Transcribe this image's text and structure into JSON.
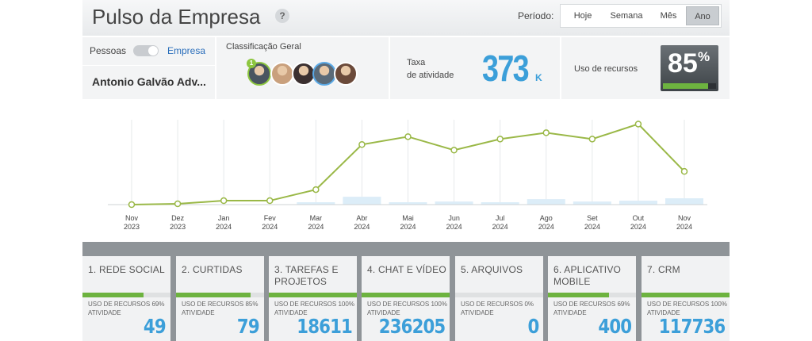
{
  "header": {
    "title": "Pulso da Empresa",
    "help_icon": "?",
    "period_label": "Período:",
    "periods": [
      "Hoje",
      "Semana",
      "Mês",
      "Ano"
    ],
    "active_period_index": 3
  },
  "filters": {
    "left_option": "Pessoas",
    "right_option": "Empresa",
    "company": "Antonio Galvão Adv..."
  },
  "ranking": {
    "title": "Classificação Geral",
    "badge": "1",
    "avatar_colors": [
      "#4a5560",
      "#c9a07d",
      "#3b3030",
      "#5a6a78",
      "#6b4a3a"
    ]
  },
  "activity": {
    "label_lines": [
      "Taxa",
      "de atividade"
    ],
    "value": "373",
    "unit": "K"
  },
  "resources": {
    "label": "Uso de recursos",
    "usage": {
      "value": 85,
      "label": "85"
    },
    "unit": "%"
  },
  "chart": {
    "type": "line",
    "x_labels": [
      [
        "Nov",
        "2023"
      ],
      [
        "Dez",
        "2023"
      ],
      [
        "Jan",
        "2024"
      ],
      [
        "Fev",
        "2024"
      ],
      [
        "Mar",
        "2024"
      ],
      [
        "Abr",
        "2024"
      ],
      [
        "Mai",
        "2024"
      ],
      [
        "Jun",
        "2024"
      ],
      [
        "Jul",
        "2024"
      ],
      [
        "Ago",
        "2024"
      ],
      [
        "Set",
        "2024"
      ],
      [
        "Out",
        "2024"
      ],
      [
        "Nov",
        "2024"
      ]
    ],
    "values": [
      0,
      0.7,
      3.3,
      3.3,
      12.6,
      50.5,
      57.1,
      45.8,
      55.1,
      60.4,
      55.1,
      67.7,
      27.9
    ],
    "bar_values": [
      0,
      0,
      0,
      0,
      2,
      6.6,
      2,
      2.6,
      2,
      4.6,
      2.6,
      3.3,
      5.3
    ],
    "ylim": [
      0,
      70
    ],
    "color": "#9ab847",
    "bar_color": "#dcedf8"
  },
  "modules": [
    {
      "title": "1. REDE SOCIAL",
      "usage_label": "USO DE RECURSOS",
      "usage": {
        "value": 69,
        "label": "69%"
      },
      "activity_label": "ATIVIDADE",
      "activity": 49
    },
    {
      "title": "2. CURTIDAS",
      "usage_label": "USO DE RECURSOS",
      "usage": {
        "value": 85,
        "label": "85%"
      },
      "activity_label": "ATIVIDADE",
      "activity": 79
    },
    {
      "title": "3. TAREFAS E PROJETOS",
      "usage_label": "USO DE RECURSOS",
      "usage": {
        "value": 100,
        "label": "100%"
      },
      "activity_label": "ATIVIDADE",
      "activity": 18611
    },
    {
      "title": "4. CHAT E VÍDEO",
      "usage_label": "USO DE RECURSOS",
      "usage": {
        "value": 100,
        "label": "100%"
      },
      "activity_label": "ATIVIDADE",
      "activity": 236205
    },
    {
      "title": "5. ARQUIVOS",
      "usage_label": "USO DE RECURSOS",
      "usage": {
        "value": 0,
        "label": "0%"
      },
      "activity_label": "ATIVIDADE",
      "activity": 0
    },
    {
      "title": "6. APLICATIVO MOBILE",
      "usage_label": "USO DE RECURSOS",
      "usage": {
        "value": 69,
        "label": "69%"
      },
      "activity_label": "ATIVIDADE",
      "activity": 400
    },
    {
      "title": "7. CRM",
      "usage_label": "USO DE RECURSOS",
      "usage": {
        "value": 100,
        "label": "100%"
      },
      "activity_label": "ATIVIDADE",
      "activity": 117736
    }
  ]
}
